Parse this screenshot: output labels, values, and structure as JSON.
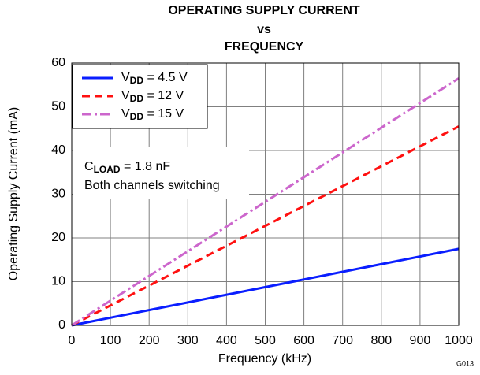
{
  "chart_data": {
    "type": "line",
    "title": [
      "OPERATING SUPPLY CURRENT",
      "vs",
      "FREQUENCY"
    ],
    "x_label": "Frequency (kHz)",
    "y_label": "Operating Supply Current (mA)",
    "annotations": [
      "CLOAD = 1.8 nF",
      "Both channels switching"
    ],
    "figure_code": "G013",
    "x": [
      0,
      1000
    ],
    "series": [
      {
        "name": "VDD = 4.5 V",
        "color": "#0a1eff",
        "dash": "solid",
        "values": [
          0,
          17.5
        ]
      },
      {
        "name": "VDD = 12 V",
        "color": "#ff1010",
        "dash": "dashed",
        "values": [
          0,
          45.5
        ]
      },
      {
        "name": "VDD = 15 V",
        "color": "#cc66cc",
        "dash": "dashdot",
        "values": [
          0,
          56.5
        ]
      }
    ],
    "xlim": [
      0,
      1000
    ],
    "xticks": [
      0,
      100,
      200,
      300,
      400,
      500,
      600,
      700,
      800,
      900,
      1000
    ],
    "ylim": [
      0,
      60
    ],
    "yticks": [
      0,
      10,
      20,
      30,
      40,
      50,
      60
    ],
    "grid": true,
    "legend": "upper left"
  }
}
